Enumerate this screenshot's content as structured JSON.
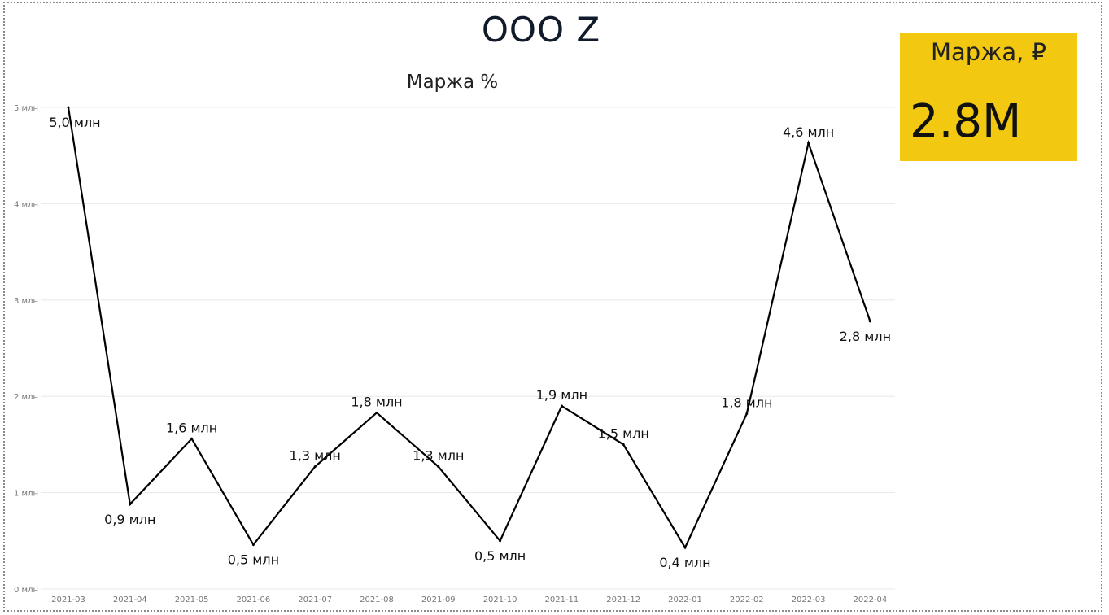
{
  "page_title": "ООО Z",
  "kpi": {
    "label": "Маржа, ₽",
    "value": "2.8M"
  },
  "colors": {
    "line": "#000000",
    "kpi_background": "#f2c811",
    "gridline": "#e8e8e8",
    "axis_text": "#777777"
  },
  "chart_data": {
    "type": "line",
    "title": "Маржа %",
    "xlabel": "",
    "ylabel": "",
    "ylim": [
      0,
      5
    ],
    "grid": true,
    "y_ticks": [
      {
        "value": 0,
        "label": "0 млн"
      },
      {
        "value": 1,
        "label": "1 млн"
      },
      {
        "value": 2,
        "label": "2 млн"
      },
      {
        "value": 3,
        "label": "3 млн"
      },
      {
        "value": 4,
        "label": "4 млн"
      },
      {
        "value": 5,
        "label": "5 млн"
      }
    ],
    "categories": [
      "2021-03",
      "2021-04",
      "2021-05",
      "2021-06",
      "2021-07",
      "2021-08",
      "2021-09",
      "2021-10",
      "2021-11",
      "2021-12",
      "2022-01",
      "2022-02",
      "2022-03",
      "2022-04"
    ],
    "values": [
      5.0,
      0.88,
      1.56,
      0.46,
      1.27,
      1.83,
      1.27,
      0.5,
      1.9,
      1.5,
      0.43,
      1.82,
      4.63,
      2.78
    ],
    "data_labels": [
      "5,0 млн",
      "0,9 млн",
      "1,6 млн",
      "0,5 млн",
      "1,3 млн",
      "1,8 млн",
      "1,3 млн",
      "0,5 млн",
      "1,9 млн",
      "1,5 млн",
      "0,4 млн",
      "1,8 млн",
      "4,6 млн",
      "2,8 млн"
    ]
  }
}
